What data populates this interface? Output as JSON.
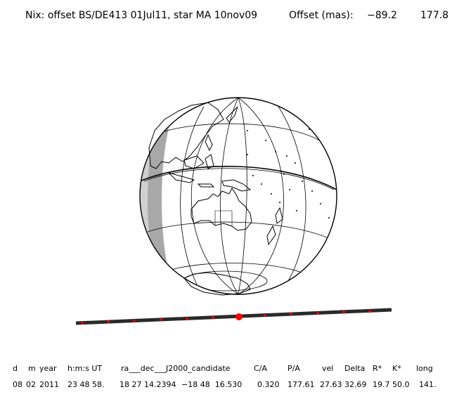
{
  "header": {
    "title": "Nix: offset BS/DE413 01Jul11, star MA 10nov09",
    "offset_label": "Offset (mas):",
    "offset_x": "−89.2",
    "offset_y": "177.8"
  },
  "colors": {
    "land_outline": "#000000",
    "night_shade": "#d0d0d0",
    "twilight_shade": "#a8a8a8",
    "track": "#2a2a2a",
    "track_ticks": "#e00000",
    "event_marker": "#ff0000"
  },
  "table": {
    "headers": [
      "d",
      "m",
      "year",
      "h:m:s UT",
      "ra___dec___J2000_candidate",
      "C/A",
      "P/A",
      "vel",
      "Delta",
      "R*",
      "K*",
      "long"
    ],
    "values": [
      "08",
      "02",
      "2011",
      "23 48 58.",
      "18 27 14.2394",
      "−18 48  16.530",
      "0.320",
      "177.61",
      "27.63",
      "32.69",
      "19.7",
      "50.0",
      "141."
    ]
  }
}
